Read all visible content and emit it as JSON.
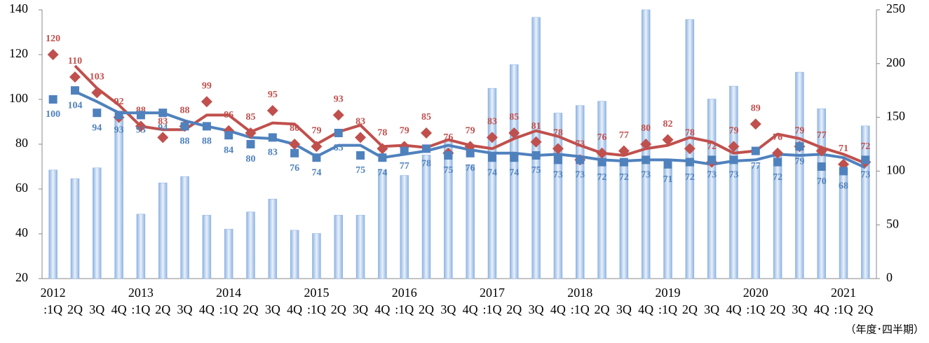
{
  "chart_data": {
    "type": "combo",
    "x_label": "（年度･四半期）",
    "categories": [
      ":1Q",
      "2Q",
      "3Q",
      "4Q",
      ":1Q",
      "2Q",
      "3Q",
      "4Q",
      ":1Q",
      "2Q",
      "3Q",
      "4Q",
      ":1Q",
      "2Q",
      "3Q",
      "4Q",
      ":1Q",
      "2Q",
      "3Q",
      "4Q",
      ":1Q",
      "2Q",
      "3Q",
      "4Q",
      ":1Q",
      "2Q",
      "3Q",
      "4Q",
      ":1Q",
      "2Q",
      "3Q",
      "4Q",
      ":1Q",
      "2Q",
      "3Q",
      "4Q",
      ":1Q",
      "2Q"
    ],
    "year_labels": [
      "2012",
      null,
      null,
      null,
      "2013",
      null,
      null,
      null,
      "2014",
      null,
      null,
      null,
      "2015",
      null,
      null,
      null,
      "2016",
      null,
      null,
      null,
      "2017",
      null,
      null,
      null,
      "2018",
      null,
      null,
      null,
      "2019",
      null,
      null,
      null,
      "2020",
      null,
      null,
      null,
      "2021",
      null
    ],
    "ylim": [
      20,
      140
    ],
    "yticks": [
      20,
      40,
      60,
      80,
      100,
      120,
      140
    ],
    "y2lim": [
      0,
      250
    ],
    "y2ticks": [
      0,
      50,
      100,
      150,
      200,
      250
    ],
    "series": [
      {
        "type": "bar",
        "axis": "y2",
        "color": "#8db3e2",
        "values": [
          101,
          93,
          103,
          148,
          60,
          89,
          95,
          59,
          46,
          62,
          74,
          45,
          42,
          59,
          59,
          101,
          96,
          115,
          129,
          106,
          177,
          199,
          243,
          154,
          161,
          165,
          109,
          250,
          103,
          241,
          167,
          179,
          105,
          116,
          192,
          158,
          103,
          142
        ]
      },
      {
        "type": "line",
        "color": "#c0504d",
        "values": [
          null,
          115,
          105,
          97.5,
          88,
          86.5,
          86.5,
          93,
          93,
          85.5,
          89.5,
          89,
          80,
          85.5,
          88.5,
          79,
          79.5,
          78.5,
          82,
          79.5,
          78,
          82.5,
          86,
          83.5,
          79.5,
          76,
          75,
          78,
          79.5,
          83,
          81,
          76,
          77,
          84.5,
          82.5,
          78.5,
          75.5,
          71.5
        ]
      },
      {
        "type": "line",
        "color": "#4f81bd",
        "values": [
          null,
          103.5,
          99,
          94,
          94,
          94,
          90.5,
          88,
          86,
          83,
          82.5,
          80,
          74.5,
          79.5,
          79.5,
          74,
          75.5,
          77,
          79.5,
          77.5,
          76,
          76,
          75,
          75.5,
          74.5,
          73,
          72.5,
          73,
          73,
          72.5,
          71,
          72.5,
          73,
          75.5,
          75,
          75.5,
          74,
          69.5
        ]
      },
      {
        "type": "scatter",
        "marker": "diamond",
        "label_position": "above",
        "color": "#c0504d",
        "values": [
          120,
          110,
          103,
          92,
          88,
          83,
          88,
          99,
          86,
          85,
          95,
          80,
          79,
          93,
          83,
          78,
          79,
          85,
          76,
          79,
          83,
          85,
          81,
          78,
          73,
          76,
          77,
          80,
          82,
          78,
          72,
          79,
          89,
          76,
          79,
          77,
          71,
          72
        ]
      },
      {
        "type": "scatter",
        "marker": "square",
        "label_position": "below",
        "color": "#4f81bd",
        "values": [
          100,
          104,
          94,
          93,
          93,
          94,
          88,
          88,
          84,
          80,
          83,
          76,
          74,
          85,
          75,
          74,
          77,
          78,
          75,
          76,
          74,
          74,
          75,
          73,
          73,
          72,
          72,
          73,
          71,
          72,
          73,
          73,
          77,
          72,
          79,
          70,
          68,
          73
        ]
      }
    ]
  }
}
